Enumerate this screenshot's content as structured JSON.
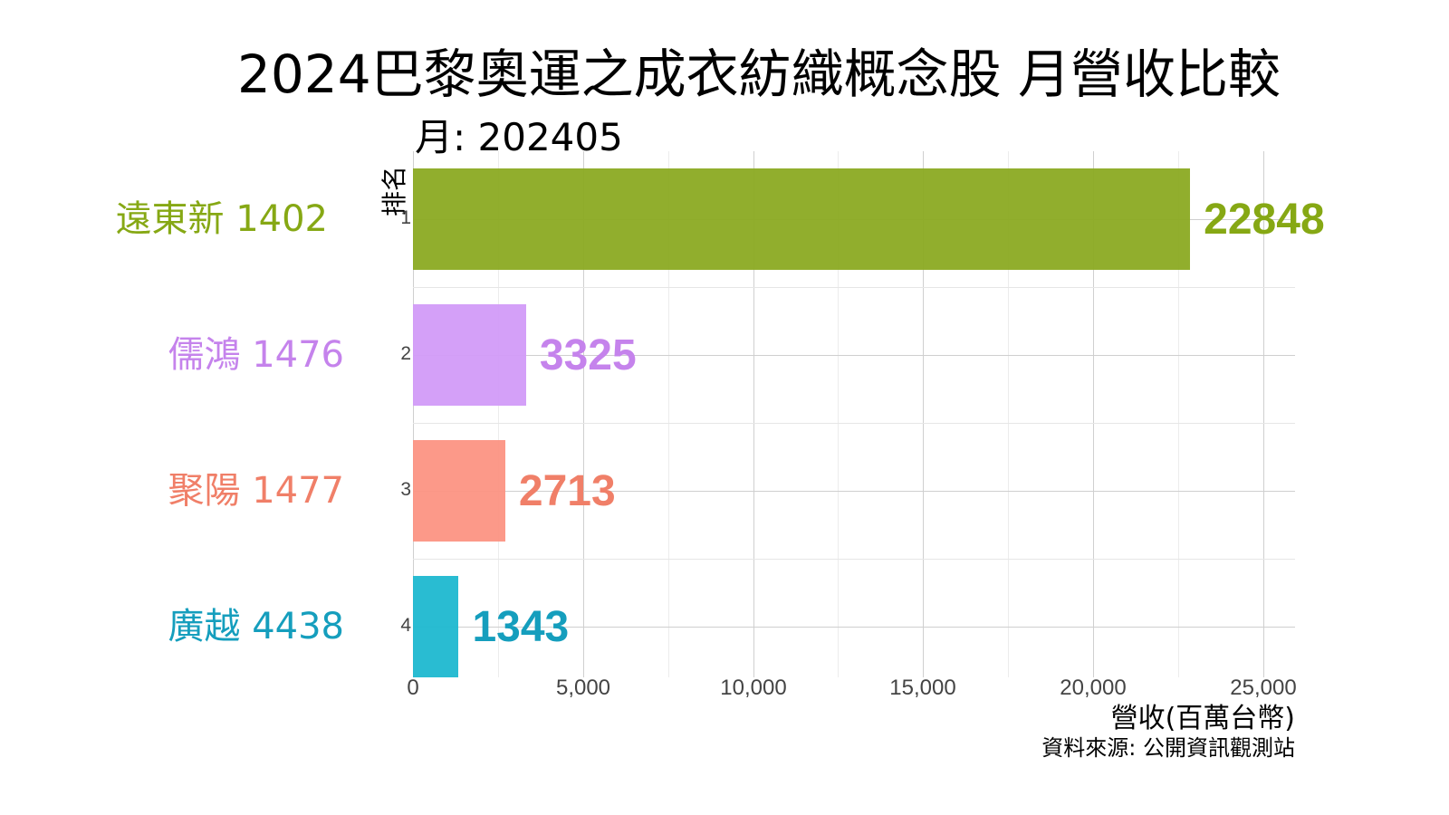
{
  "chart": {
    "title": "2024巴黎奧運之成衣紡織概念股 月營收比較",
    "subtitle": "月: 202405",
    "yaxis_title": "排名",
    "xaxis_title": "營收(百萬台幣)",
    "source": "資料來源: 公開資訊觀測站",
    "x_ticks": [
      "0",
      "5,000",
      "10,000",
      "15,000",
      "20,000",
      "25,000"
    ],
    "rows": [
      {
        "rank": "1",
        "label": "遠東新 1402",
        "value": "22848",
        "color": "#86A814",
        "bar_color": "#8BAA22"
      },
      {
        "rank": "2",
        "label": "儒鴻 1476",
        "value": "3325",
        "color": "#C583EC",
        "bar_color": "#D29BF8"
      },
      {
        "rank": "3",
        "label": "聚陽 1477",
        "value": "2713",
        "color": "#F07F68",
        "bar_color": "#FC9483"
      },
      {
        "rank": "4",
        "label": "廣越 4438",
        "value": "1343",
        "color": "#159EBD",
        "bar_color": "#1EB8D0"
      }
    ]
  },
  "chart_data": {
    "type": "bar",
    "orientation": "horizontal",
    "title": "2024巴黎奧運之成衣紡織概念股 月營收比較",
    "subtitle": "月: 202405",
    "categories": [
      "遠東新 1402",
      "儒鴻 1476",
      "聚陽 1477",
      "廣越 4438"
    ],
    "ranks": [
      1,
      2,
      3,
      4
    ],
    "values": [
      22848,
      3325,
      2713,
      1343
    ],
    "xlabel": "營收(百萬台幣)",
    "ylabel": "排名",
    "xlim": [
      0,
      25000
    ],
    "x_ticks": [
      0,
      5000,
      10000,
      15000,
      20000,
      25000
    ],
    "grid": true,
    "legend": "none",
    "annotation": "資料來源: 公開資訊觀測站",
    "colors": [
      "#8BAA22",
      "#D29BF8",
      "#FC9483",
      "#1EB8D0"
    ]
  }
}
